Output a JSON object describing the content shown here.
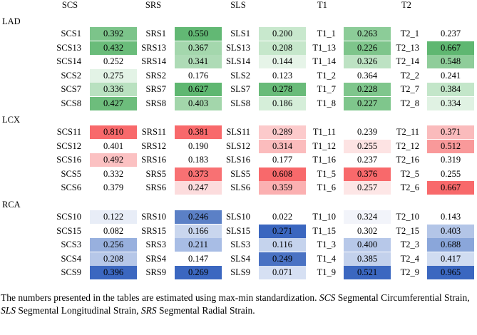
{
  "headers": [
    "SCS",
    "SRS",
    "SLS",
    "T1",
    "T2"
  ],
  "groups": [
    {
      "name": "LAD",
      "rows": [
        {
          "labels": [
            "SCS1",
            "SRS1",
            "SLS1",
            "T1_1",
            "T2_1"
          ],
          "values": [
            "0.392",
            "0.550",
            "0.200",
            "0.263",
            "0.237"
          ],
          "colors": [
            "#7cc48a",
            "#62b874",
            "#c8e8cd",
            "#8ccc98",
            "#ffffff"
          ]
        },
        {
          "labels": [
            "SCS13",
            "SRS13",
            "SLS13",
            "T1_13",
            "T2_13"
          ],
          "values": [
            "0.432",
            "0.367",
            "0.208",
            "0.226",
            "0.667"
          ],
          "colors": [
            "#6abc7a",
            "#a4d7ad",
            "#c6e7cb",
            "#7ec58b",
            "#5fb771"
          ]
        },
        {
          "labels": [
            "SCS14",
            "SRS14",
            "SLS14",
            "T1_14",
            "T2_14"
          ],
          "values": [
            "0.252",
            "0.341",
            "0.144",
            "0.326",
            "0.548"
          ],
          "colors": [
            "#ffffff",
            "#aedbb6",
            "#e6f4e8",
            "#bde2c3",
            "#8fcd9a"
          ]
        },
        {
          "labels": [
            "SCS2",
            "SRS2",
            "SLS2",
            "T1_2",
            "T2_2"
          ],
          "values": [
            "0.275",
            "0.176",
            "0.123",
            "0.364",
            "0.241"
          ],
          "colors": [
            "#e3f3e6",
            "#ffffff",
            "#ffffff",
            "#ffffff",
            "#ffffff"
          ]
        },
        {
          "labels": [
            "SCS7",
            "SRS7",
            "SLS7",
            "T1_7",
            "T2_7"
          ],
          "values": [
            "0.336",
            "0.627",
            "0.278",
            "0.228",
            "0.384"
          ],
          "colors": [
            "#b9e1c0",
            "#5fb771",
            "#69bb79",
            "#7fc68c",
            "#c3e6c9"
          ]
        },
        {
          "labels": [
            "SCS8",
            "SRS8",
            "SLS8",
            "T1_8",
            "T2_8"
          ],
          "values": [
            "0.427",
            "0.403",
            "0.186",
            "0.227",
            "0.334"
          ],
          "colors": [
            "#6dbd7c",
            "#a3d6ab",
            "#d5eed9",
            "#7fc68c",
            "#e0f2e3"
          ]
        }
      ]
    },
    {
      "name": "LCX",
      "rows": [
        {
          "labels": [
            "SCS11",
            "SRS11",
            "SLS11",
            "T1_11",
            "T2_11"
          ],
          "values": [
            "0.810",
            "0.381",
            "0.289",
            "0.239",
            "0.371"
          ],
          "colors": [
            "#f8696b",
            "#f8696b",
            "#fccacb",
            "#ffffff",
            "#fabbbc"
          ]
        },
        {
          "labels": [
            "SCS12",
            "SRS12",
            "SLS12",
            "T1_12",
            "T2_12"
          ],
          "values": [
            "0.401",
            "0.190",
            "0.314",
            "0.255",
            "0.512"
          ],
          "colors": [
            "#ffffff",
            "#ffffff",
            "#fbbcbd",
            "#fde3e3",
            "#f9999a"
          ]
        },
        {
          "labels": [
            "SCS16",
            "SRS16",
            "SLS16",
            "T1_16",
            "T2_16"
          ],
          "values": [
            "0.492",
            "0.183",
            "0.177",
            "0.237",
            "0.319"
          ],
          "colors": [
            "#fbc1c2",
            "#ffffff",
            "#ffffff",
            "#ffffff",
            "#ffffff"
          ]
        },
        {
          "labels": [
            "SCS5",
            "SRS5",
            "SLS5",
            "T1_5",
            "T2_5"
          ],
          "values": [
            "0.332",
            "0.373",
            "0.608",
            "0.376",
            "0.255"
          ],
          "colors": [
            "#ffffff",
            "#f87173",
            "#f8696b",
            "#f8696b",
            "#ffffff"
          ]
        },
        {
          "labels": [
            "SCS6",
            "SRS6",
            "SLS6",
            "T1_6",
            "T2_6"
          ],
          "values": [
            "0.379",
            "0.247",
            "0.359",
            "0.257",
            "0.667"
          ],
          "colors": [
            "#ffffff",
            "#fcdcdd",
            "#fbb0b1",
            "#fde6e6",
            "#f8696b"
          ]
        }
      ]
    },
    {
      "name": "RCA",
      "rows": [
        {
          "labels": [
            "SCS10",
            "SRS10",
            "SLS10",
            "T1_10",
            "T2_10"
          ],
          "values": [
            "0.122",
            "0.246",
            "0.022",
            "0.324",
            "0.143"
          ],
          "colors": [
            "#e8edf7",
            "#5b80c6",
            "#ffffff",
            "#f2f4fa",
            "#ffffff"
          ]
        },
        {
          "labels": [
            "SCS15",
            "SRS15",
            "SLS15",
            "T1_15",
            "T2_15"
          ],
          "values": [
            "0.082",
            "0.166",
            "0.271",
            "0.302",
            "0.403"
          ],
          "colors": [
            "#ffffff",
            "#c9d6ee",
            "#3a66bf",
            "#ffffff",
            "#b3c5e7"
          ]
        },
        {
          "labels": [
            "SCS3",
            "SRS3",
            "SLS3",
            "T1_3",
            "T2_3"
          ],
          "values": [
            "0.256",
            "0.211",
            "0.116",
            "0.400",
            "0.688"
          ],
          "colors": [
            "#98b0de",
            "#a8bde5",
            "#c5d3ed",
            "#b7c8e9",
            "#8aa6da"
          ]
        },
        {
          "labels": [
            "SCS4",
            "SRS4",
            "SLS4",
            "T1_4",
            "T2_4"
          ],
          "values": [
            "0.208",
            "0.147",
            "0.249",
            "0.385",
            "0.417"
          ],
          "colors": [
            "#b6c7e8",
            "#ffffff",
            "#4a72c3",
            "#c3d1ec",
            "#d0dcf1"
          ]
        },
        {
          "labels": [
            "SCS9",
            "SRS9",
            "SLS9",
            "T1_9",
            "T2_9"
          ],
          "values": [
            "0.396",
            "0.269",
            "0.071",
            "0.521",
            "0.965"
          ],
          "colors": [
            "#3b67c0",
            "#3b67c0",
            "#d6e0f3",
            "#3b67c0",
            "#3b67c0"
          ]
        }
      ]
    }
  ],
  "footnote": {
    "part1": "The numbers presented in the tables are estimated using max-min standardization. ",
    "scs_abbr": "SCS",
    "scs_text": " Segmental Circumferential Strain, ",
    "sls_abbr": "SLS",
    "sls_text": " Segmental Longitudinal Strain, ",
    "srs_abbr": "SRS",
    "srs_text": " Segmental Radial Strain."
  }
}
